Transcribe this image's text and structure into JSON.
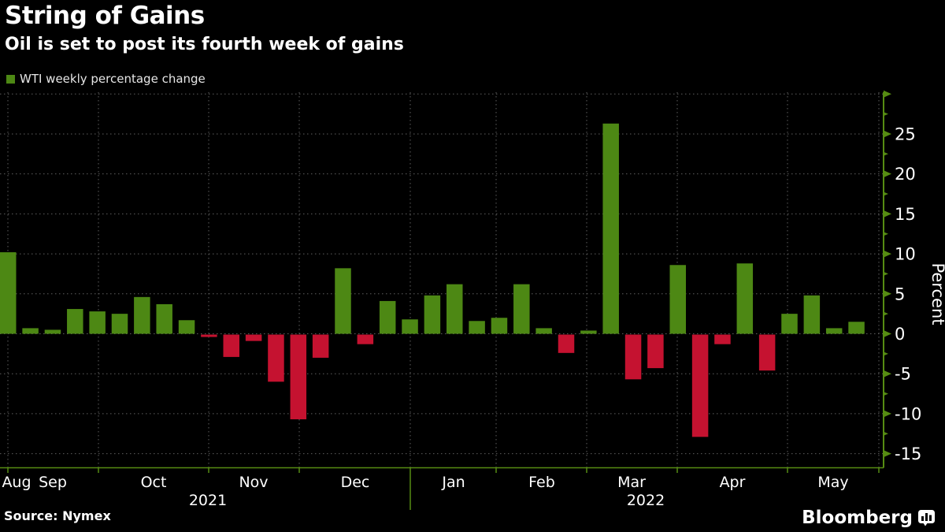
{
  "header": {
    "title": "String of Gains",
    "subtitle": "Oil is set to post its fourth week of gains"
  },
  "legend": {
    "label": "WTI weekly percentage change",
    "swatch_color": "#4d8814"
  },
  "footer": {
    "source": "Source: Nymex",
    "brand": "Bloomberg"
  },
  "chart_data": {
    "type": "bar",
    "title": "String of Gains",
    "subtitle": "Oil is set to post its fourth week of gains",
    "series_name": "WTI weekly percentage change",
    "ylabel": "Percent",
    "ylim": [
      -16.8,
      30.4
    ],
    "y_major_ticks": [
      25,
      20,
      15,
      10,
      5,
      0,
      -5,
      -10,
      -15
    ],
    "y_minor_ticks": [
      27.5,
      22.5,
      17.5,
      12.5,
      7.5,
      2.5,
      -2.5,
      -7.5,
      -12.5
    ],
    "grid": "dotted",
    "legend_position": "top-left",
    "x_axis": {
      "month_labels": [
        "Aug",
        "Sep",
        "Oct",
        "Nov",
        "Dec",
        "Jan",
        "Feb",
        "Mar",
        "Apr",
        "May"
      ],
      "year_labels": [
        "2021",
        "2022"
      ]
    },
    "frequency": "weekly",
    "values": [
      10.2,
      0.7,
      0.5,
      3.1,
      2.8,
      2.5,
      4.6,
      3.7,
      1.7,
      -0.3,
      -2.8,
      -0.8,
      -5.9,
      -10.6,
      -2.9,
      8.2,
      -1.2,
      4.1,
      1.8,
      4.8,
      6.2,
      1.6,
      2.0,
      6.2,
      0.7,
      -2.3,
      0.4,
      26.3,
      -5.6,
      -4.2,
      8.6,
      -12.8,
      -1.2,
      8.8,
      -4.5,
      2.5,
      4.8,
      0.7,
      1.5
    ],
    "colors": {
      "positive": "#4d8814",
      "negative": "#c51230",
      "axis": "#568c12",
      "grid": "#5f5f5f",
      "text": "#ffffff"
    }
  }
}
